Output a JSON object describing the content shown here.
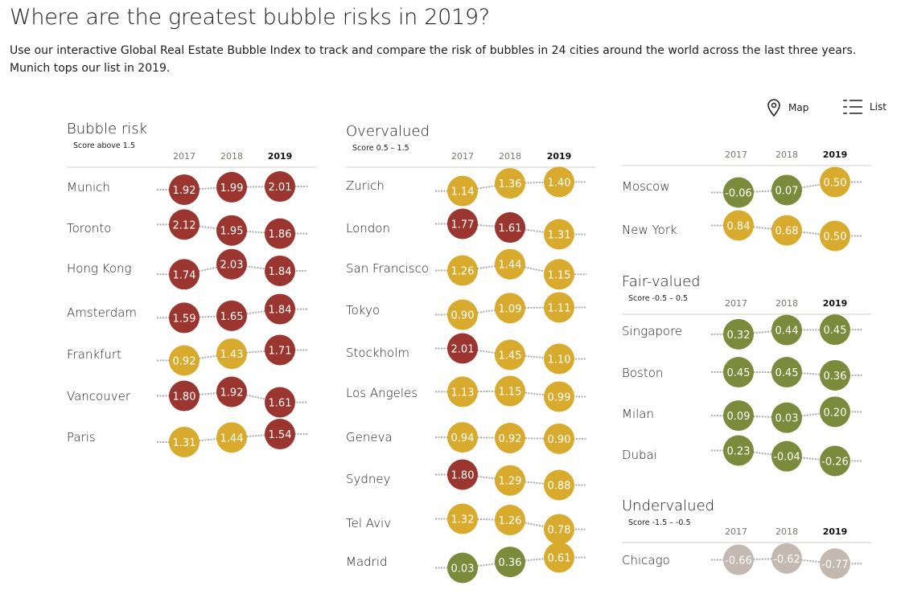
{
  "title": "Where are the greatest bubble risks in 2019?",
  "intro": "Use our interactive Global Real Estate Bubble Index to track and compare the risk of bubbles in 24 cities around the world across the last three years. Munich tops our list in 2019.",
  "views": {
    "map": "Map",
    "list": "List"
  },
  "colors": {
    "bubble_risk": "#9b3530",
    "overvalued": "#d8aa2e",
    "fair_valued": "#7c8a3b",
    "undervalued": "#c3b9b0"
  },
  "chart_data": {
    "type": "dot-plot",
    "years": [
      "2017",
      "2018",
      "2019"
    ],
    "sections": [
      {
        "title": "Bubble risk",
        "subtitle": "Score above 1.5",
        "cities": [
          {
            "name": "Munich",
            "values": [
              1.92,
              1.99,
              2.01
            ]
          },
          {
            "name": "Toronto",
            "values": [
              2.12,
              1.95,
              1.86
            ]
          },
          {
            "name": "Hong Kong",
            "values": [
              1.74,
              2.03,
              1.84
            ]
          },
          {
            "name": "Amsterdam",
            "values": [
              1.59,
              1.65,
              1.84
            ]
          },
          {
            "name": "Frankfurt",
            "values": [
              0.92,
              1.43,
              1.71
            ]
          },
          {
            "name": "Vancouver",
            "values": [
              1.8,
              1.92,
              1.61
            ]
          },
          {
            "name": "Paris",
            "values": [
              1.31,
              1.44,
              1.54
            ]
          }
        ]
      },
      {
        "title": "Overvalued",
        "subtitle": "Score 0.5 – 1.5",
        "cities": [
          {
            "name": "Zurich",
            "values": [
              1.14,
              1.36,
              1.4
            ]
          },
          {
            "name": "London",
            "values": [
              1.77,
              1.61,
              1.31
            ]
          },
          {
            "name": "San Francisco",
            "values": [
              1.26,
              1.44,
              1.15
            ]
          },
          {
            "name": "Tokyo",
            "values": [
              0.9,
              1.09,
              1.11
            ]
          },
          {
            "name": "Stockholm",
            "values": [
              2.01,
              1.45,
              1.1
            ]
          },
          {
            "name": "Los Angeles",
            "values": [
              1.13,
              1.15,
              0.99
            ]
          },
          {
            "name": "Geneva",
            "values": [
              0.94,
              0.92,
              0.9
            ]
          },
          {
            "name": "Sydney",
            "values": [
              1.8,
              1.29,
              0.88
            ]
          },
          {
            "name": "Tel Aviv",
            "values": [
              1.32,
              1.26,
              0.78
            ]
          },
          {
            "name": "Madrid",
            "values": [
              0.03,
              0.36,
              0.61
            ]
          },
          {
            "name": "Moscow",
            "values": [
              -0.06,
              0.07,
              0.5
            ]
          },
          {
            "name": "New York",
            "values": [
              0.84,
              0.68,
              0.5
            ]
          }
        ]
      },
      {
        "title": "Fair-valued",
        "subtitle": "Score -0.5 – 0.5",
        "cities": [
          {
            "name": "Singapore",
            "values": [
              0.32,
              0.44,
              0.45
            ]
          },
          {
            "name": "Boston",
            "values": [
              0.45,
              0.45,
              0.36
            ]
          },
          {
            "name": "Milan",
            "values": [
              0.09,
              0.03,
              0.2
            ]
          },
          {
            "name": "Dubai",
            "values": [
              0.23,
              -0.04,
              -0.26
            ]
          }
        ]
      },
      {
        "title": "Undervalued",
        "subtitle": "Score -1.5 – -0.5",
        "cities": [
          {
            "name": "Chicago",
            "values": [
              -0.66,
              -0.62,
              -0.77
            ]
          }
        ]
      }
    ]
  }
}
